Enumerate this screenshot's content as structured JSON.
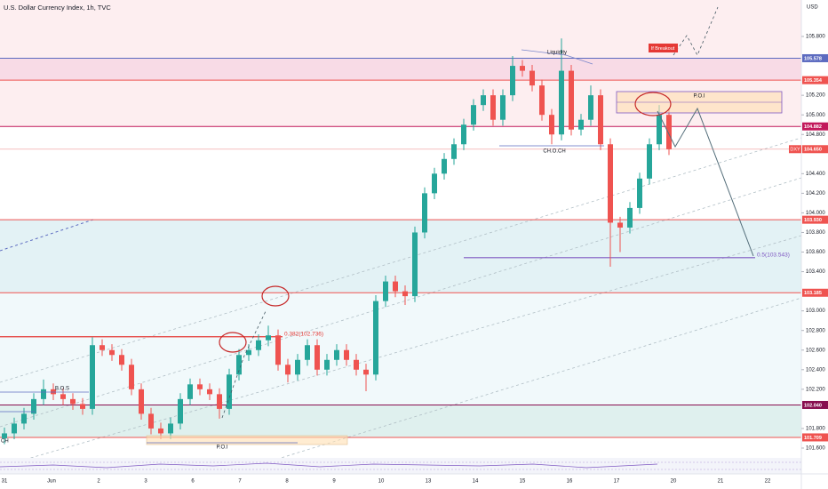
{
  "chart_data": {
    "type": "candlestick",
    "title": "U.S. Dollar Currency Index, 1h, TVC",
    "currency": "USD",
    "categories": [
      "31",
      "Jun",
      "2",
      "3",
      "6",
      "7",
      "8",
      "9",
      "10",
      "13",
      "14",
      "15",
      "16",
      "17",
      "20",
      "21",
      "22"
    ],
    "ylim": [
      101.5,
      106.172
    ],
    "yticks": [
      {
        "value": 105.8,
        "label": "105.800"
      },
      {
        "value": 105.2,
        "label": "105.200"
      },
      {
        "value": 105.0,
        "label": "105.000"
      },
      {
        "value": 104.8,
        "label": "104.800"
      },
      {
        "value": 104.4,
        "label": "104.400"
      },
      {
        "value": 104.2,
        "label": "104.200"
      },
      {
        "value": 104.0,
        "label": "104.000"
      },
      {
        "value": 103.8,
        "label": "103.800"
      },
      {
        "value": 103.6,
        "label": "103.600"
      },
      {
        "value": 103.4,
        "label": "103.400"
      },
      {
        "value": 103.0,
        "label": "103.000"
      },
      {
        "value": 102.8,
        "label": "102.800"
      },
      {
        "value": 102.6,
        "label": "102.600"
      },
      {
        "value": 102.4,
        "label": "102.400"
      },
      {
        "value": 102.2,
        "label": "102.200"
      },
      {
        "value": 101.8,
        "label": "101.800"
      },
      {
        "value": 101.6,
        "label": "101.600"
      }
    ],
    "up_color": "#26a69a",
    "down_color": "#ef5350",
    "open": [
      101.7,
      101.75,
      101.85,
      101.95,
      102.1,
      102.2,
      102.15,
      102.1,
      102.05,
      102.0,
      102.65,
      102.6,
      102.55,
      102.45,
      102.2,
      101.95,
      101.8,
      101.75,
      101.85,
      102.1,
      102.25,
      102.2,
      102.15,
      102.0,
      102.35,
      102.55,
      102.6,
      102.7,
      102.75,
      102.45,
      102.35,
      102.5,
      102.65,
      102.4,
      102.5,
      102.6,
      102.5,
      102.4,
      102.35,
      103.1,
      103.3,
      103.2,
      103.15,
      103.8,
      104.2,
      104.4,
      104.55,
      104.7,
      104.9,
      105.1,
      105.2,
      104.95,
      105.2,
      105.5,
      105.45,
      105.3,
      105.0,
      104.8,
      105.45,
      104.85,
      104.95,
      105.2,
      104.7,
      103.9,
      103.85,
      104.05,
      104.35,
      104.7,
      105.0
    ],
    "high": [
      101.81,
      101.91,
      102.01,
      102.16,
      102.3,
      102.26,
      102.21,
      102.16,
      102.11,
      102.73,
      102.71,
      102.66,
      102.61,
      102.51,
      102.26,
      102.01,
      101.86,
      101.91,
      102.16,
      102.31,
      102.31,
      102.26,
      102.21,
      102.41,
      102.61,
      102.66,
      102.76,
      102.85,
      102.81,
      102.51,
      102.56,
      102.71,
      102.71,
      102.56,
      102.66,
      102.66,
      102.56,
      102.46,
      103.16,
      103.36,
      103.36,
      103.26,
      103.86,
      104.26,
      104.46,
      104.61,
      104.76,
      104.96,
      105.16,
      105.26,
      105.26,
      105.26,
      105.6,
      105.56,
      105.51,
      105.36,
      105.06,
      105.78,
      105.51,
      105.01,
      105.3,
      105.26,
      104.76,
      103.96,
      104.11,
      104.41,
      104.76,
      105.1,
      105.06
    ],
    "low": [
      101.64,
      101.69,
      101.79,
      101.89,
      102.04,
      102.09,
      102.04,
      101.99,
      101.94,
      101.94,
      102.54,
      102.49,
      102.39,
      102.14,
      101.89,
      101.74,
      101.69,
      101.69,
      101.79,
      102.04,
      102.14,
      102.09,
      101.9,
      101.94,
      102.29,
      102.49,
      102.54,
      102.64,
      102.39,
      102.27,
      102.29,
      102.44,
      102.34,
      102.34,
      102.44,
      102.44,
      102.34,
      102.18,
      102.29,
      103.04,
      103.14,
      103.06,
      103.09,
      103.74,
      104.14,
      104.34,
      104.49,
      104.64,
      104.84,
      105.04,
      104.89,
      104.89,
      105.14,
      105.39,
      105.24,
      104.94,
      104.7,
      104.74,
      104.79,
      104.79,
      104.89,
      104.64,
      103.45,
      103.6,
      103.79,
      103.99,
      104.29,
      104.64,
      104.59
    ],
    "close": [
      101.75,
      101.85,
      101.95,
      102.1,
      102.2,
      102.15,
      102.1,
      102.05,
      102.0,
      102.65,
      102.6,
      102.55,
      102.45,
      102.2,
      101.95,
      101.8,
      101.75,
      101.85,
      102.1,
      102.25,
      102.2,
      102.15,
      102.0,
      102.35,
      102.55,
      102.6,
      102.7,
      102.75,
      102.45,
      102.35,
      102.5,
      102.65,
      102.4,
      102.5,
      102.6,
      102.5,
      102.4,
      102.35,
      103.1,
      103.3,
      103.2,
      103.15,
      103.8,
      104.2,
      104.4,
      104.55,
      104.7,
      104.9,
      105.1,
      105.2,
      104.95,
      105.2,
      105.5,
      105.45,
      105.3,
      105.0,
      104.8,
      105.45,
      104.85,
      104.95,
      105.2,
      104.7,
      103.9,
      103.85,
      104.05,
      104.35,
      104.7,
      105.0,
      104.65
    ],
    "levels": [
      {
        "value": 105.578,
        "color": "#5c6bc0"
      },
      {
        "value": 105.354,
        "color": "#ef5350"
      },
      {
        "value": 104.882,
        "color": "#c2185b"
      },
      {
        "value": 104.65,
        "label": "104.650",
        "name": "DXY",
        "color": "#ef9a9a"
      },
      {
        "value": 103.93,
        "label": "103.930",
        "color": "#ef5350"
      },
      {
        "value": 103.185,
        "color": "#ef5350"
      },
      {
        "value": 102.04,
        "label": "102.040",
        "color": "#880e4f"
      },
      {
        "value": 101.709,
        "color": "#ef5350"
      }
    ],
    "fibs": [
      {
        "label": "0.5(103.543)",
        "value": 103.543,
        "color": "#7e57c2"
      },
      {
        "label": "0.382(102.736)",
        "value": 102.736,
        "color": "#e53935"
      }
    ],
    "annotations": [
      "Liquidity",
      "CH.O.CH",
      "P.O.I",
      "P.O.I",
      "B.O.S",
      "If Breakout",
      "CH"
    ]
  }
}
